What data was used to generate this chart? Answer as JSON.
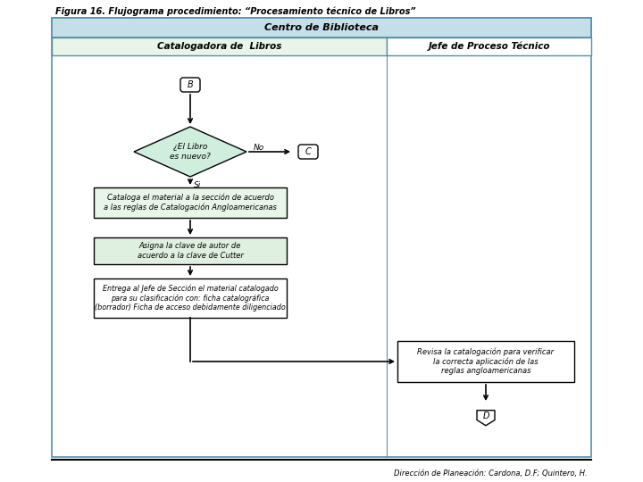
{
  "title": "Figura 16. Flujograma procedimiento: “Procesamiento técnico de Libros”",
  "header_main": "Centro de Biblioteca",
  "header_left": "Catalogadora de  Libros",
  "header_right": "Jefe de Proceso Técnico",
  "footer": "Dirección de Planeación: Cardona, D.F; Quintero, H.",
  "node_B": "B",
  "node_C": "C",
  "node_D": "D",
  "diamond_text": "¿El Libro\nes nuevo?",
  "no_label": "No",
  "si_label": "Si",
  "box1_text": "Cataloga el material a la sección de acuerdo\na las reglas de Catalogación Angloamericanas",
  "box2_text": "Asigna la clave de autor de\nacuerdo a la clave de Cutter",
  "box3_text": "Entrega al Jefe de Sección el material catalogado\npara su clasificación con: ficha catalográfica\n(borrador) Ficha de acceso debidamente diligenciado",
  "box4_text": "Revisa la catalogación para verificar\nla correcta aplicación de las\nreglas angloamericanas",
  "bg_color": "#ffffff",
  "header_main_bg": "#c5dfe8",
  "header_main_border": "#5a8fa8",
  "header_left_bg": "#e8f5e8",
  "header_right_bg": "#ffffff",
  "header_border": "#5a8fa8",
  "box1_bg": "#e8f5e8",
  "box2_bg": "#e0f0e0",
  "box3_bg": "#ffffff",
  "box4_bg": "#ffffff",
  "diamond_bg": "#d0eedd",
  "terminal_bg": "#ffffff",
  "line_color": "#000000",
  "text_color": "#000000",
  "outer_border_color": "#5a8fa8"
}
